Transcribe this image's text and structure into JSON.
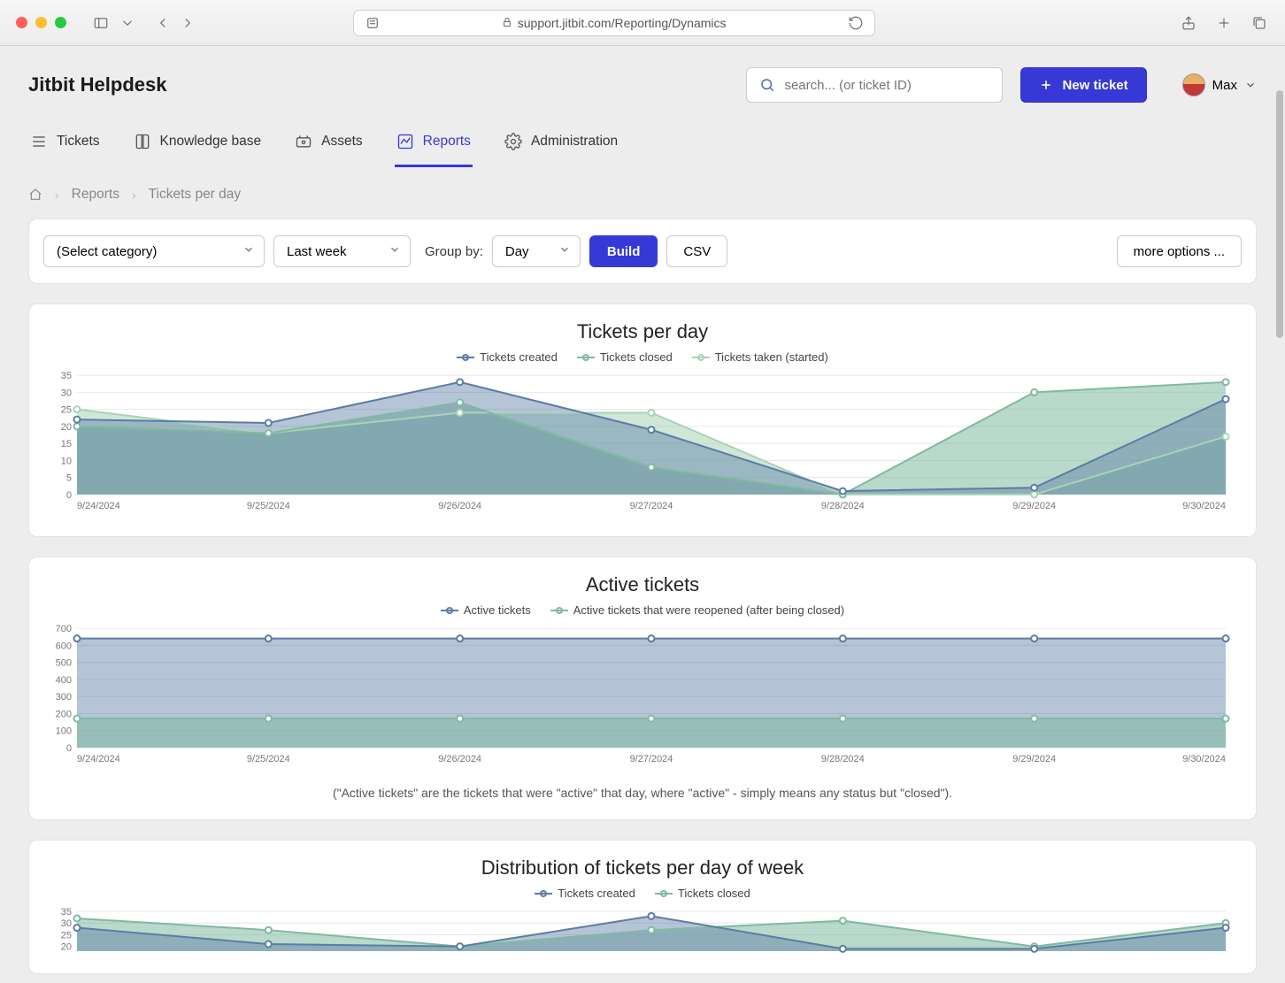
{
  "browser": {
    "url": "support.jitbit.com/Reporting/Dynamics"
  },
  "header": {
    "brand": "Jitbit Helpdesk",
    "search_placeholder": "search... (or ticket ID)",
    "new_ticket_label": "New ticket",
    "user_name": "Max"
  },
  "nav": {
    "tickets": "Tickets",
    "kb": "Knowledge base",
    "assets": "Assets",
    "reports": "Reports",
    "admin": "Administration"
  },
  "breadcrumb": {
    "reports": "Reports",
    "current": "Tickets per day"
  },
  "controls": {
    "category_placeholder": "(Select category)",
    "range": "Last week",
    "groupby_label": "Group by:",
    "groupby_value": "Day",
    "build": "Build",
    "csv": "CSV",
    "more": "more options ..."
  },
  "colors": {
    "series_created": "#5c7ca6",
    "series_closed": "#80b9a0",
    "series_taken": "#a9d3b8",
    "fill_created": "rgba(92,124,166,0.45)",
    "fill_closed": "rgba(128,185,160,0.55)",
    "fill_taken": "rgba(169,211,184,0.55)",
    "grid": "#e6e6e6",
    "axis_text": "#777"
  },
  "chart1": {
    "title": "Tickets per day",
    "legend": [
      "Tickets created",
      "Tickets closed",
      "Tickets taken (started)"
    ],
    "x_labels": [
      "9/24/2024",
      "9/25/2024",
      "9/26/2024",
      "9/27/2024",
      "9/28/2024",
      "9/29/2024",
      "9/30/2024"
    ],
    "y_ticks": [
      0,
      5,
      10,
      15,
      20,
      25,
      30,
      35
    ],
    "ylim": [
      0,
      35
    ],
    "series": {
      "created": [
        22,
        21,
        33,
        19,
        1,
        2,
        28
      ],
      "closed": [
        20,
        18,
        27,
        8,
        0,
        30,
        33
      ],
      "taken": [
        25,
        18,
        24,
        24,
        0,
        0,
        17
      ]
    }
  },
  "chart2": {
    "title": "Active tickets",
    "legend": [
      "Active tickets",
      "Active tickets that were reopened (after being closed)"
    ],
    "x_labels": [
      "9/24/2024",
      "9/25/2024",
      "9/26/2024",
      "9/27/2024",
      "9/28/2024",
      "9/29/2024",
      "9/30/2024"
    ],
    "y_ticks": [
      0,
      100,
      200,
      300,
      400,
      500,
      600,
      700
    ],
    "ylim": [
      0,
      700
    ],
    "series": {
      "active": [
        640,
        640,
        640,
        640,
        640,
        640,
        640
      ],
      "reopened": [
        170,
        170,
        170,
        170,
        170,
        170,
        170
      ]
    },
    "footnote": "(\"Active tickets\" are the tickets that were \"active\" that day, where \"active\" - simply means any status but \"closed\")."
  },
  "chart3": {
    "title": "Distribution of tickets per day of week",
    "legend": [
      "Tickets created",
      "Tickets closed"
    ],
    "y_ticks": [
      20,
      25,
      30,
      35
    ],
    "ylim": [
      18,
      35
    ],
    "series": {
      "created": [
        28,
        21,
        20,
        33,
        19,
        19,
        28
      ],
      "closed": [
        32,
        27,
        20,
        27,
        31,
        20,
        30
      ]
    }
  }
}
